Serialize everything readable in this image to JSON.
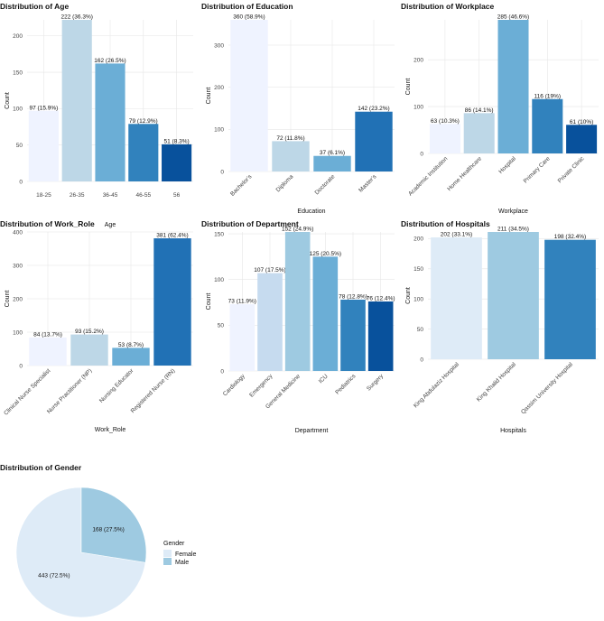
{
  "chart_data": [
    {
      "type": "bar",
      "title": "Distribution of Age",
      "xlabel": "Age",
      "ylabel": "Count",
      "categories": [
        "18-25",
        "26-35",
        "36-45",
        "46-55",
        "56"
      ],
      "values": [
        97,
        222,
        162,
        79,
        51
      ],
      "labels": [
        "97 (15.9%)",
        "222 (36.3%)",
        "162 (26.5%)",
        "79 (12.9%)",
        "51 (8.3%)"
      ],
      "yticks": [
        0,
        50,
        100,
        150,
        200
      ],
      "ylim": [
        0,
        222
      ],
      "colors": [
        "#eff3ff",
        "#bdd7e7",
        "#6baed6",
        "#3182bd",
        "#08519c"
      ],
      "rotate_ticks": false,
      "grid": true
    },
    {
      "type": "bar",
      "title": "Distribution of Education",
      "xlabel": "Education",
      "ylabel": "Count",
      "categories": [
        "Bachelor's",
        "Diploma",
        "Doctorate",
        "Master's"
      ],
      "values": [
        360,
        72,
        37,
        142
      ],
      "labels": [
        "360 (58.9%)",
        "72 (11.8%)",
        "37 (6.1%)",
        "142 (23.2%)"
      ],
      "yticks": [
        0,
        100,
        200,
        300
      ],
      "ylim": [
        0,
        360
      ],
      "colors": [
        "#eff3ff",
        "#bdd7e7",
        "#6baed6",
        "#2171b5"
      ],
      "rotate_ticks": true,
      "grid": true
    },
    {
      "type": "bar",
      "title": "Distribution of Workplace",
      "xlabel": "Workplace",
      "ylabel": "Count",
      "categories": [
        "Academic Institution",
        "Home Healthcare",
        "Hospital",
        "Primary Care",
        "Private Clinic"
      ],
      "values": [
        63,
        86,
        285,
        116,
        61
      ],
      "labels": [
        "63 (10.3%)",
        "86 (14.1%)",
        "285 (46.6%)",
        "116 (19%)",
        "61 (10%)"
      ],
      "yticks": [
        0,
        100,
        200
      ],
      "ylim": [
        0,
        285
      ],
      "colors": [
        "#eff3ff",
        "#bdd7e7",
        "#6baed6",
        "#3182bd",
        "#08519c"
      ],
      "rotate_ticks": true,
      "grid": true
    },
    {
      "type": "bar",
      "title": "Distribution of Work_Role",
      "xlabel": "Work_Role",
      "ylabel": "Count",
      "categories": [
        "Clinical Nurse Specialist",
        "Nurse Practitioner (NP)",
        "Nursing Educator",
        "Registered Nurse (RN)"
      ],
      "values": [
        84,
        93,
        53,
        381
      ],
      "labels": [
        "84 (13.7%)",
        "93 (15.2%)",
        "53 (8.7%)",
        "381 (62.4%)"
      ],
      "yticks": [
        0,
        100,
        200,
        300,
        400
      ],
      "ylim": [
        0,
        400
      ],
      "colors": [
        "#eff3ff",
        "#bdd7e7",
        "#6baed6",
        "#2171b5"
      ],
      "rotate_ticks": true,
      "grid": true
    },
    {
      "type": "bar",
      "title": "Distribution of Department",
      "xlabel": "Department",
      "ylabel": "Count",
      "categories": [
        "Cardiology",
        "Emergency",
        "General Medicine",
        "ICU",
        "Pediatrics",
        "Surgery"
      ],
      "values": [
        73,
        107,
        152,
        125,
        78,
        76
      ],
      "labels": [
        "73 (11.9%)",
        "107 (17.5%)",
        "152 (24.9%)",
        "125 (20.5%)",
        "78 (12.8%)",
        "76 (12.4%)"
      ],
      "yticks": [
        0,
        50,
        100,
        150
      ],
      "ylim": [
        0,
        152
      ],
      "colors": [
        "#eff3ff",
        "#c6dbef",
        "#9ecae1",
        "#6baed6",
        "#3182bd",
        "#08519c"
      ],
      "rotate_ticks": true,
      "grid": true
    },
    {
      "type": "bar",
      "title": "Distribution of Hospitals",
      "xlabel": "Hospitals",
      "ylabel": "Count",
      "categories": [
        "King Abdulaziz Hospital",
        "King Khalid Hospital",
        "Qassim University Hospital"
      ],
      "values": [
        202,
        211,
        198
      ],
      "labels": [
        "202 (33.1%)",
        "211 (34.5%)",
        "198 (32.4%)"
      ],
      "yticks": [
        0,
        50,
        100,
        150,
        200
      ],
      "ylim": [
        0,
        211
      ],
      "colors": [
        "#deebf7",
        "#9ecae1",
        "#3182bd"
      ],
      "rotate_ticks": true,
      "grid": true
    },
    {
      "type": "pie",
      "title": "Distribution of Gender",
      "categories": [
        "Female",
        "Male"
      ],
      "values": [
        443,
        168
      ],
      "labels": [
        "443 (72.5%)",
        "168 (27.5%)"
      ],
      "colors": [
        "#deebf7",
        "#9ecae1"
      ],
      "legend_title": "Gender",
      "legend_position": "right"
    }
  ]
}
